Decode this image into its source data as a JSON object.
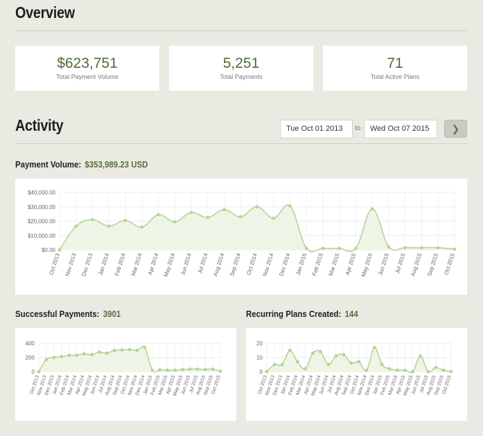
{
  "overview": {
    "title": "Overview",
    "stats": [
      {
        "value": "$623,751",
        "label": "Total Payment Volume"
      },
      {
        "value": "5,251",
        "label": "Total Payments"
      },
      {
        "value": "71",
        "label": "Total Active Plans"
      }
    ]
  },
  "activity": {
    "title": "Activity",
    "from_date": "Tue Oct 01 2013",
    "to_label": "to",
    "to_date": "Wed Oct 07 2015",
    "go_icon": "chevron-right-icon"
  },
  "colors": {
    "line": "#b6d495",
    "fill": "#eef5e6",
    "accent": "#546f3c"
  },
  "metrics": {
    "payment_volume": {
      "label": "Payment Volume:",
      "value": "$353,989.23 USD"
    },
    "successful_payments": {
      "label": "Successful Payments:",
      "value": "3901"
    },
    "recurring_plans": {
      "label": "Recurring Plans Created:",
      "value": "144"
    }
  },
  "chart_data": [
    {
      "id": "payment-volume-chart",
      "type": "area",
      "categories": [
        "Oct 2013",
        "Nov 2013",
        "Dec 2013",
        "Jan 2014",
        "Feb 2014",
        "Mar 2014",
        "Apr 2014",
        "May 2014",
        "Jun 2014",
        "Jul 2014",
        "Aug 2014",
        "Sep 2014",
        "Oct 2014",
        "Nov 2014",
        "Dec 2014",
        "Jan 2015",
        "Feb 2015",
        "Mar 2015",
        "Apr 2015",
        "May 2015",
        "Jun 2015",
        "Jul 2015",
        "Aug 2015",
        "Sep 2015",
        "Oct 2015"
      ],
      "values": [
        0,
        16500,
        21000,
        16500,
        20500,
        15800,
        24500,
        19500,
        26000,
        22500,
        28000,
        23000,
        30000,
        22000,
        30500,
        1000,
        1000,
        1000,
        1000,
        28500,
        2000,
        1500,
        1500,
        1500,
        500
      ],
      "yticks": [
        "$0.00",
        "$10,000.00",
        "$20,000.00",
        "$30,000.00",
        "$40,000.00"
      ],
      "ylim": [
        0,
        40000
      ],
      "grid": true
    },
    {
      "id": "successful-payments-chart",
      "type": "area",
      "categories": [
        "Oct 2013",
        "Nov 2013",
        "Dec 2013",
        "Jan 2014",
        "Feb 2014",
        "Mar 2014",
        "Apr 2014",
        "May 2014",
        "Jun 2014",
        "Jul 2014",
        "Aug 2014",
        "Sep 2014",
        "Oct 2014",
        "Nov 2014",
        "Dec 2014",
        "Jan 2015",
        "Feb 2015",
        "Mar 2015",
        "Apr 2015",
        "May 2015",
        "Jun 2015",
        "Jul 2015",
        "Aug 2015",
        "Sep 2015",
        "Oct 2015"
      ],
      "values": [
        0,
        170,
        200,
        210,
        230,
        230,
        250,
        240,
        275,
        260,
        300,
        305,
        310,
        300,
        340,
        20,
        25,
        20,
        20,
        30,
        35,
        35,
        30,
        35,
        5
      ],
      "yticks": [
        "0",
        "200",
        "400"
      ],
      "ylim": [
        0,
        400
      ],
      "grid": true
    },
    {
      "id": "recurring-plans-chart",
      "type": "area",
      "categories": [
        "Oct 2013",
        "Nov 2013",
        "Dec 2013",
        "Jan 2014",
        "Feb 2014",
        "Mar 2014",
        "Apr 2014",
        "May 2014",
        "Jun 2014",
        "Jul 2014",
        "Aug 2014",
        "Sep 2014",
        "Oct 2014",
        "Nov 2014",
        "Dec 2014",
        "Jan 2015",
        "Feb 2015",
        "Mar 2015",
        "Apr 2015",
        "May 2015",
        "Jun 2015",
        "Jul 2015",
        "Aug 2015",
        "Sep 2015",
        "Oct 2015"
      ],
      "values": [
        0,
        5,
        5,
        15,
        7,
        2,
        13,
        14,
        5,
        11,
        12,
        6,
        7,
        1,
        17,
        5,
        2,
        1,
        1,
        0,
        11,
        0,
        3,
        1,
        0
      ],
      "yticks": [
        "0",
        "10",
        "20"
      ],
      "ylim": [
        0,
        20
      ],
      "grid": true
    }
  ]
}
